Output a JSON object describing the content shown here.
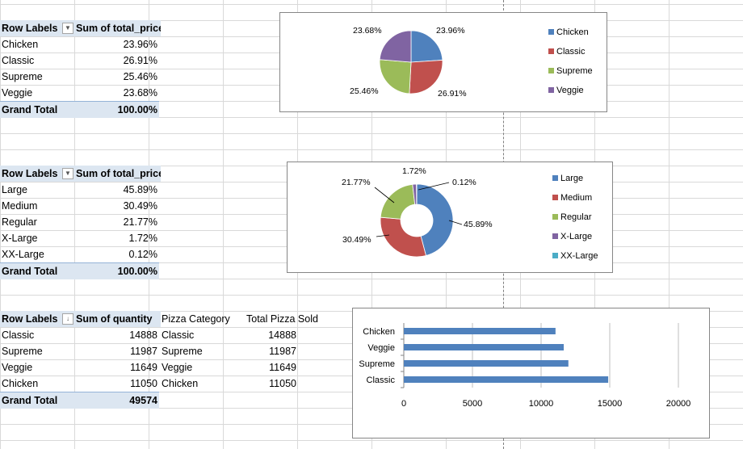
{
  "pivot1": {
    "header_labels": "Row Labels",
    "header_value": "Sum of total_price",
    "rows": [
      {
        "label": "Chicken",
        "value": "23.96%"
      },
      {
        "label": "Classic",
        "value": "26.91%"
      },
      {
        "label": "Supreme",
        "value": "25.46%"
      },
      {
        "label": "Veggie",
        "value": "23.68%"
      }
    ],
    "total_label": "Grand Total",
    "total_value": "100.00%"
  },
  "pivot2": {
    "header_labels": "Row Labels",
    "header_value": "Sum of total_price",
    "rows": [
      {
        "label": "Large",
        "value": "45.89%"
      },
      {
        "label": "Medium",
        "value": "30.49%"
      },
      {
        "label": "Regular",
        "value": "21.77%"
      },
      {
        "label": "X-Large",
        "value": "1.72%"
      },
      {
        "label": "XX-Large",
        "value": "0.12%"
      }
    ],
    "total_label": "Grand Total",
    "total_value": "100.00%"
  },
  "pivot3": {
    "header_labels": "Row Labels",
    "header_value": "Sum of quantity",
    "col3_header": "Pizza Category",
    "col4_header": "Total Pizza Sold",
    "rows": [
      {
        "label": "Classic",
        "value": "14888",
        "cat": "Classic",
        "sold": "14888"
      },
      {
        "label": "Supreme",
        "value": "11987",
        "cat": "Supreme",
        "sold": "11987"
      },
      {
        "label": "Veggie",
        "value": "11649",
        "cat": "Veggie",
        "sold": "11649"
      },
      {
        "label": "Chicken",
        "value": "11050",
        "cat": "Chicken",
        "sold": "11050"
      }
    ],
    "total_label": "Grand Total",
    "total_value": "49574"
  },
  "chart_data": [
    {
      "type": "pie",
      "categories": [
        "Chicken",
        "Classic",
        "Supreme",
        "Veggie"
      ],
      "values": [
        23.96,
        26.91,
        25.46,
        23.68
      ],
      "data_labels": [
        "23.96%",
        "26.91%",
        "25.46%",
        "23.68%"
      ],
      "colors": [
        "#4f81bd",
        "#c0504d",
        "#9bbb59",
        "#8064a2"
      ],
      "legend": "right"
    },
    {
      "type": "pie",
      "variant": "doughnut",
      "categories": [
        "Large",
        "Medium",
        "Regular",
        "X-Large",
        "XX-Large"
      ],
      "values": [
        45.89,
        30.49,
        21.77,
        1.72,
        0.12
      ],
      "data_labels": [
        "45.89%",
        "30.49%",
        "21.77%",
        "1.72%",
        "0.12%"
      ],
      "colors": [
        "#4f81bd",
        "#c0504d",
        "#9bbb59",
        "#8064a2",
        "#4bacc6"
      ],
      "legend": "right"
    },
    {
      "type": "bar",
      "orientation": "horizontal",
      "categories": [
        "Classic",
        "Supreme",
        "Veggie",
        "Chicken"
      ],
      "values": [
        14888,
        11987,
        11649,
        11050
      ],
      "xlim": [
        0,
        20000
      ],
      "ticks": [
        "0",
        "5000",
        "10000",
        "15000",
        "20000"
      ],
      "grid": true,
      "color": "#4f81bd"
    }
  ]
}
